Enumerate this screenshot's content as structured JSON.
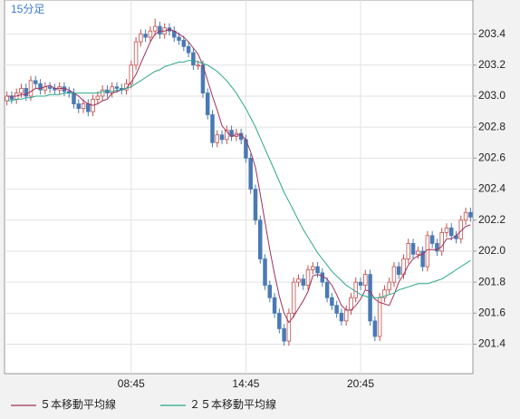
{
  "chart_data": {
    "type": "candlestick",
    "title": "15分足",
    "categories": [
      null,
      null,
      null,
      null,
      null,
      null,
      null,
      null,
      null,
      null,
      null,
      null,
      null,
      null,
      null,
      null,
      null,
      null,
      null,
      null,
      null,
      null,
      null,
      null,
      null,
      null,
      "08:45",
      null,
      null,
      null,
      null,
      null,
      null,
      null,
      null,
      null,
      null,
      null,
      null,
      null,
      null,
      null,
      null,
      null,
      null,
      null,
      null,
      null,
      null,
      null,
      "14:45",
      null,
      null,
      null,
      null,
      null,
      null,
      null,
      null,
      null,
      null,
      null,
      null,
      null,
      null,
      null,
      null,
      null,
      null,
      null,
      null,
      null,
      null,
      null,
      "20:45",
      null,
      null,
      null,
      null,
      null,
      null,
      null,
      null,
      null,
      null,
      null,
      null,
      null,
      null,
      null,
      null,
      null,
      null,
      null,
      null,
      null,
      null,
      null
    ],
    "open": [
      202.97,
      203.0,
      202.98,
      203.02,
      203.05,
      203.0,
      203.1,
      203.08,
      203.04,
      203.06,
      203.05,
      203.04,
      203.06,
      203.03,
      203.02,
      202.95,
      202.92,
      202.95,
      202.9,
      202.98,
      203.0,
      203.04,
      203.02,
      203.06,
      203.05,
      203.04,
      203.08,
      203.2,
      203.35,
      203.4,
      203.38,
      203.42,
      203.45,
      203.4,
      203.44,
      203.42,
      203.38,
      203.36,
      203.32,
      203.28,
      203.2,
      203.2,
      203.02,
      202.88,
      202.7,
      202.75,
      202.72,
      202.78,
      202.74,
      202.76,
      202.72,
      202.6,
      202.4,
      202.2,
      201.95,
      201.78,
      201.7,
      201.6,
      201.5,
      201.42,
      201.6,
      201.8,
      201.82,
      201.78,
      201.88,
      201.9,
      201.86,
      201.8,
      201.7,
      201.65,
      201.6,
      201.55,
      201.62,
      201.7,
      201.8,
      201.78,
      201.85,
      201.55,
      201.45,
      201.7,
      201.75,
      201.8,
      201.9,
      201.85,
      201.95,
      202.05,
      201.98,
      202.0,
      201.9,
      202.1,
      202.05,
      202.0,
      202.12,
      202.15,
      202.1,
      202.08,
      202.2,
      202.25
    ],
    "high": [
      203.03,
      203.03,
      203.05,
      203.08,
      203.08,
      203.13,
      203.13,
      203.11,
      203.09,
      203.09,
      203.08,
      203.09,
      203.09,
      203.06,
      203.05,
      202.98,
      202.98,
      202.98,
      203.01,
      203.03,
      203.07,
      203.07,
      203.09,
      203.09,
      203.08,
      203.11,
      203.23,
      203.38,
      203.43,
      203.43,
      203.45,
      203.5,
      203.48,
      203.47,
      203.47,
      203.45,
      203.41,
      203.39,
      203.35,
      203.31,
      203.23,
      203.23,
      203.05,
      202.91,
      202.78,
      202.78,
      202.81,
      202.81,
      202.79,
      202.79,
      202.75,
      202.63,
      202.43,
      202.23,
      201.98,
      201.81,
      201.73,
      201.63,
      201.53,
      201.63,
      201.83,
      201.85,
      201.85,
      201.91,
      201.93,
      201.93,
      201.89,
      201.83,
      201.73,
      201.68,
      201.63,
      201.65,
      201.73,
      201.83,
      201.83,
      201.88,
      201.88,
      201.58,
      201.73,
      201.78,
      201.83,
      201.93,
      201.93,
      201.98,
      202.08,
      202.08,
      202.03,
      202.03,
      202.13,
      202.13,
      202.08,
      202.15,
      202.18,
      202.18,
      202.13,
      202.23,
      202.28,
      202.28
    ],
    "low": [
      202.94,
      202.95,
      202.95,
      202.99,
      202.97,
      202.97,
      203.05,
      203.01,
      203.01,
      203.02,
      203.01,
      203.01,
      203.0,
      202.99,
      202.92,
      202.89,
      202.89,
      202.87,
      202.87,
      202.95,
      202.97,
      202.99,
      202.99,
      203.02,
      203.01,
      203.01,
      203.05,
      203.17,
      203.32,
      203.35,
      203.35,
      203.39,
      203.37,
      203.37,
      203.39,
      203.35,
      203.33,
      203.29,
      203.25,
      203.17,
      203.17,
      202.99,
      202.85,
      202.67,
      202.67,
      202.69,
      202.69,
      202.71,
      202.71,
      202.69,
      202.57,
      202.37,
      202.17,
      201.92,
      201.75,
      201.67,
      201.57,
      201.47,
      201.39,
      201.39,
      201.57,
      201.77,
      201.75,
      201.75,
      201.85,
      201.83,
      201.77,
      201.67,
      201.62,
      201.57,
      201.52,
      201.52,
      201.59,
      201.67,
      201.75,
      201.75,
      201.52,
      201.42,
      201.42,
      201.67,
      201.72,
      201.77,
      201.82,
      201.82,
      201.92,
      201.95,
      201.95,
      201.87,
      201.87,
      202.02,
      201.97,
      201.97,
      202.09,
      202.07,
      202.05,
      202.05,
      202.17,
      202.19
    ],
    "close": [
      203.0,
      202.98,
      203.02,
      203.05,
      203.0,
      203.1,
      203.08,
      203.04,
      203.06,
      203.05,
      203.04,
      203.06,
      203.03,
      203.02,
      202.95,
      202.92,
      202.95,
      202.9,
      202.98,
      203.0,
      203.04,
      203.02,
      203.06,
      203.05,
      203.04,
      203.08,
      203.2,
      203.35,
      203.4,
      203.38,
      203.42,
      203.45,
      203.4,
      203.44,
      203.42,
      203.38,
      203.36,
      203.32,
      203.28,
      203.2,
      203.2,
      203.02,
      202.88,
      202.7,
      202.75,
      202.72,
      202.78,
      202.74,
      202.76,
      202.72,
      202.6,
      202.4,
      202.2,
      201.95,
      201.78,
      201.7,
      201.6,
      201.5,
      201.42,
      201.6,
      201.8,
      201.82,
      201.78,
      201.88,
      201.9,
      201.86,
      201.8,
      201.7,
      201.65,
      201.6,
      201.55,
      201.62,
      201.7,
      201.8,
      201.78,
      201.85,
      201.55,
      201.45,
      201.7,
      201.75,
      201.8,
      201.9,
      201.85,
      201.95,
      202.05,
      201.98,
      202.0,
      201.9,
      202.1,
      202.05,
      202.0,
      202.12,
      202.15,
      202.1,
      202.08,
      202.2,
      202.25,
      202.22
    ],
    "up_color": "#c0504d",
    "down_color": "#4a7ab5",
    "series": [
      {
        "name": "５本移動平均線",
        "color": "#a0325a",
        "values": [
          203.0,
          203.0,
          203.0,
          203.01,
          203.01,
          203.03,
          203.05,
          203.05,
          203.06,
          203.07,
          203.05,
          203.05,
          203.05,
          203.04,
          203.02,
          203.0,
          202.97,
          202.95,
          202.94,
          202.95,
          202.97,
          202.98,
          203.02,
          203.03,
          203.04,
          203.05,
          203.09,
          203.14,
          203.21,
          203.28,
          203.35,
          203.4,
          203.42,
          203.42,
          203.43,
          203.42,
          203.4,
          203.38,
          203.35,
          203.31,
          203.27,
          203.2,
          203.1,
          203.0,
          202.91,
          202.81,
          202.77,
          202.74,
          202.75,
          202.75,
          202.72,
          202.64,
          202.54,
          202.37,
          202.19,
          202.01,
          201.85,
          201.71,
          201.6,
          201.54,
          201.58,
          201.63,
          201.68,
          201.74,
          201.84,
          201.85,
          201.84,
          201.82,
          201.78,
          201.72,
          201.65,
          201.62,
          201.62,
          201.65,
          201.69,
          201.75,
          201.74,
          201.69,
          201.67,
          201.66,
          201.65,
          201.72,
          201.8,
          201.85,
          201.91,
          201.95,
          201.97,
          201.98,
          202.01,
          202.01,
          202.01,
          202.03,
          202.08,
          202.08,
          202.1,
          202.13,
          202.16,
          202.17
        ]
      },
      {
        "name": "２５本移動平均線",
        "color": "#2aa88a",
        "values": [
          202.97,
          202.97,
          202.98,
          202.98,
          202.99,
          202.99,
          203.0,
          203.0,
          203.0,
          203.01,
          203.01,
          203.01,
          203.02,
          203.02,
          203.02,
          203.02,
          203.02,
          203.02,
          203.02,
          203.02,
          203.03,
          203.03,
          203.03,
          203.04,
          203.04,
          203.05,
          203.06,
          203.08,
          203.1,
          203.12,
          203.14,
          203.16,
          203.17,
          203.19,
          203.2,
          203.21,
          203.22,
          203.22,
          203.23,
          203.23,
          203.22,
          203.21,
          203.2,
          203.18,
          203.16,
          203.13,
          203.1,
          203.06,
          203.02,
          202.97,
          202.92,
          202.86,
          202.8,
          202.73,
          202.66,
          202.59,
          202.52,
          202.45,
          202.38,
          202.32,
          202.26,
          202.2,
          202.14,
          202.09,
          202.04,
          201.99,
          201.95,
          201.91,
          201.87,
          201.84,
          201.81,
          201.78,
          201.76,
          201.74,
          201.72,
          201.71,
          201.7,
          201.7,
          201.7,
          201.71,
          201.72,
          201.73,
          201.75,
          201.76,
          201.77,
          201.78,
          201.79,
          201.79,
          201.79,
          201.8,
          201.81,
          201.82,
          201.84,
          201.86,
          201.88,
          201.9,
          201.92,
          201.94
        ]
      }
    ],
    "ylim": [
      201.21,
      203.62
    ],
    "yticks": [
      201.4,
      201.6,
      201.8,
      {
        "value": 202,
        "label": "202.0"
      },
      202.2,
      202.4,
      202.6,
      202.8,
      {
        "value": 203,
        "label": "203.0"
      },
      203.2,
      203.4
    ],
    "grid": true
  }
}
